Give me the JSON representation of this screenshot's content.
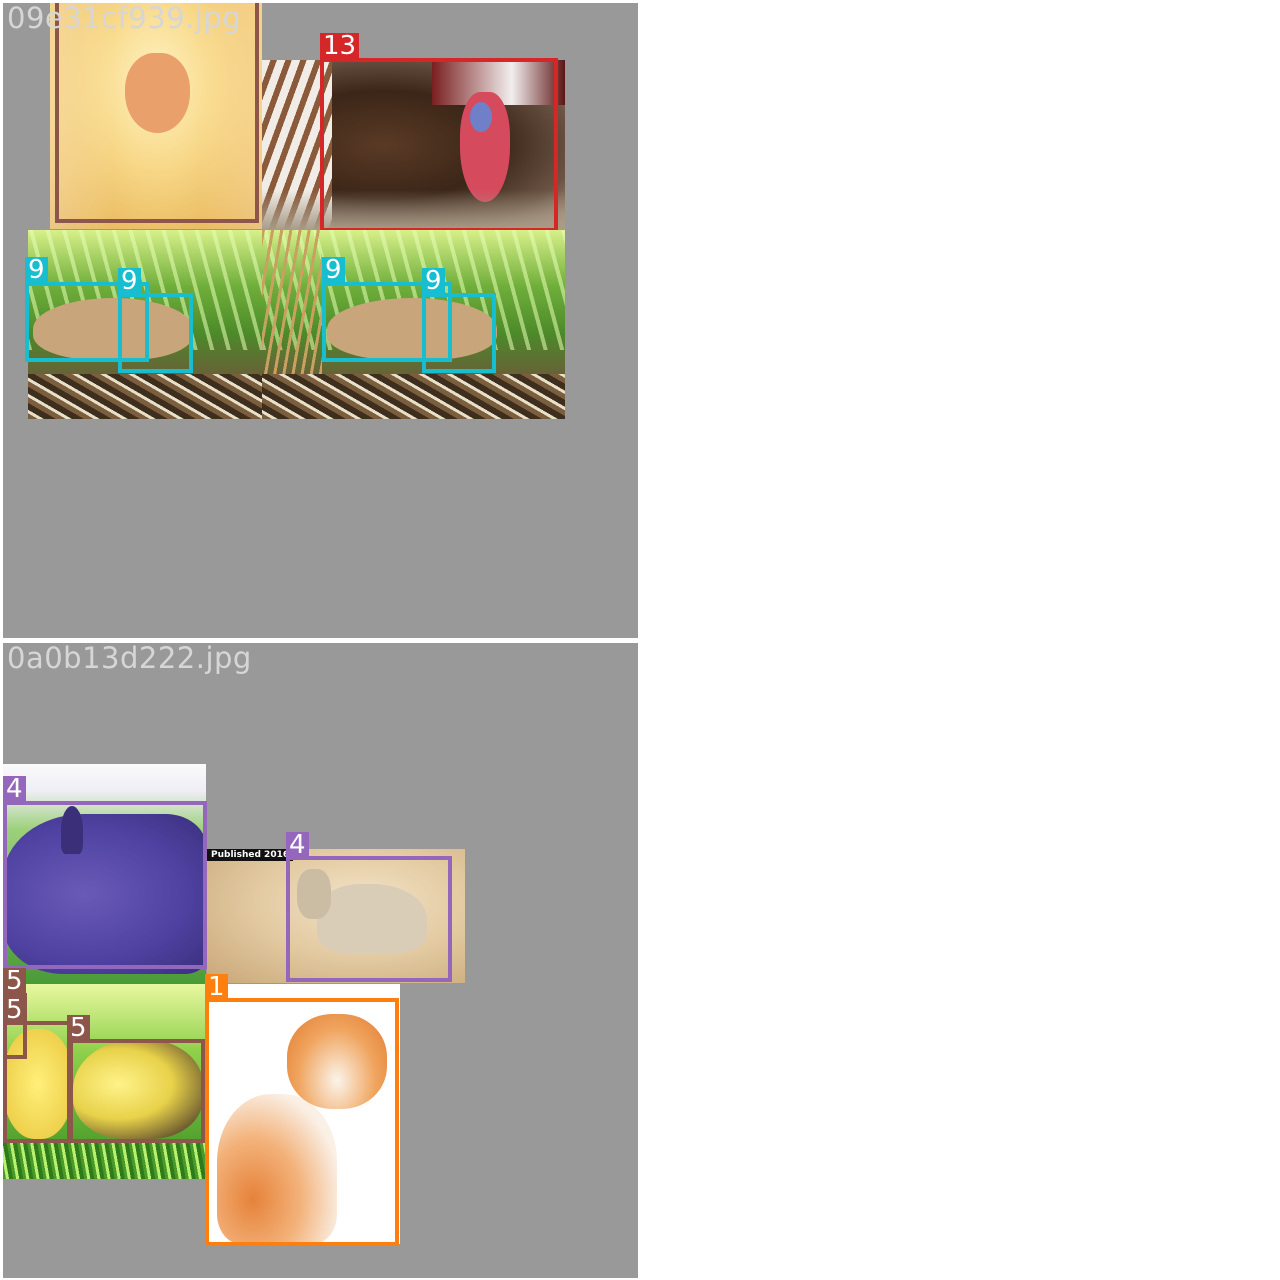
{
  "mosaics": [
    {
      "filename": "09e31cf939.jpg",
      "labels": [
        "13",
        "9",
        "9",
        "9",
        "9"
      ]
    },
    {
      "filename": "0a0b13d222.jpg",
      "labels": [
        "4",
        "4",
        "5",
        "5",
        "5",
        "1"
      ],
      "banner_text": "Published 2016"
    }
  ],
  "colors": {
    "tile_bg": "#999999",
    "class_13": "#d62728",
    "class_9": "#17becf",
    "class_4": "#9467bd",
    "class_5": "#8c564b",
    "class_1": "#ff7f0e"
  }
}
